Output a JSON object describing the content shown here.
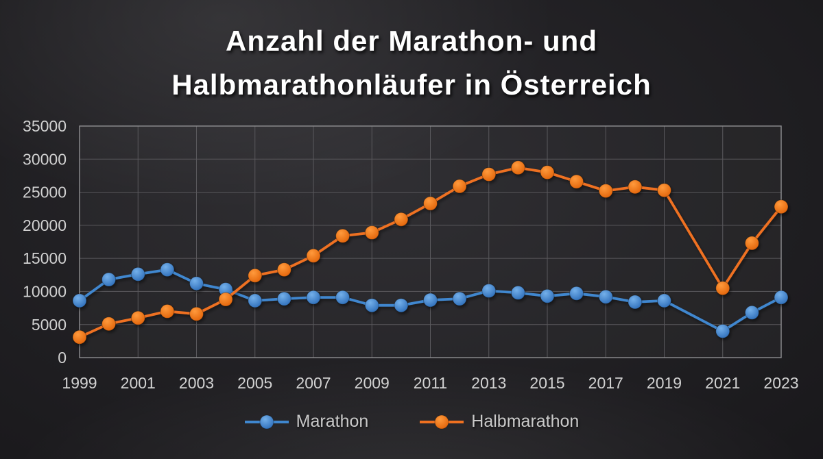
{
  "title": {
    "line1": "Anzahl der Marathon- und",
    "line2": "Halbmarathonläufer in Österreich"
  },
  "chart_data": {
    "type": "line",
    "title": "Anzahl der Marathon- und Halbmarathonläufer in Österreich",
    "xlabel": "",
    "ylabel": "",
    "grid": true,
    "x_axis": {
      "range": [
        1999,
        2023
      ],
      "ticks": [
        1999,
        2001,
        2003,
        2005,
        2007,
        2009,
        2011,
        2013,
        2015,
        2017,
        2019,
        2021,
        2023
      ]
    },
    "y_axis": {
      "min": 0,
      "max": 35000,
      "tick_interval": 5000,
      "ticks": [
        0,
        5000,
        10000,
        15000,
        20000,
        25000,
        30000,
        35000
      ]
    },
    "gap_years": [
      2020
    ],
    "legend": {
      "position": "bottom",
      "entries": [
        "Marathon",
        "Halbmarathon"
      ]
    },
    "series": [
      {
        "name": "Marathon",
        "color": "#3f87cf",
        "marker_gradient": [
          "#74b0ea",
          "#2f6fba"
        ],
        "points": [
          [
            1999,
            8600
          ],
          [
            2000,
            11800
          ],
          [
            2001,
            12600
          ],
          [
            2002,
            13300
          ],
          [
            2003,
            11200
          ],
          [
            2004,
            10300
          ],
          [
            2005,
            8600
          ],
          [
            2006,
            8900
          ],
          [
            2007,
            9100
          ],
          [
            2008,
            9100
          ],
          [
            2009,
            7900
          ],
          [
            2010,
            7900
          ],
          [
            2011,
            8700
          ],
          [
            2012,
            8900
          ],
          [
            2013,
            10100
          ],
          [
            2014,
            9800
          ],
          [
            2015,
            9300
          ],
          [
            2016,
            9700
          ],
          [
            2017,
            9200
          ],
          [
            2018,
            8400
          ],
          [
            2019,
            8600
          ],
          [
            2021,
            4000
          ],
          [
            2022,
            6800
          ],
          [
            2023,
            9100
          ]
        ]
      },
      {
        "name": "Halbmarathon",
        "color": "#ef7120",
        "marker_gradient": [
          "#ff9a3c",
          "#e2640a"
        ],
        "points": [
          [
            1999,
            3100
          ],
          [
            2000,
            5100
          ],
          [
            2001,
            6000
          ],
          [
            2002,
            7000
          ],
          [
            2003,
            6600
          ],
          [
            2004,
            8800
          ],
          [
            2005,
            12400
          ],
          [
            2006,
            13300
          ],
          [
            2007,
            15400
          ],
          [
            2008,
            18400
          ],
          [
            2009,
            18900
          ],
          [
            2010,
            20900
          ],
          [
            2011,
            23300
          ],
          [
            2012,
            25900
          ],
          [
            2013,
            27700
          ],
          [
            2014,
            28700
          ],
          [
            2015,
            28000
          ],
          [
            2016,
            26600
          ],
          [
            2017,
            25200
          ],
          [
            2018,
            25800
          ],
          [
            2019,
            25300
          ],
          [
            2021,
            10500
          ],
          [
            2022,
            17300
          ],
          [
            2023,
            22800
          ]
        ]
      }
    ],
    "style": {
      "grid_color": "#5a595d",
      "border_color": "#8f8f92",
      "axis_label_color": "#d2d2d2",
      "legend_label_color": "#c9c9c9",
      "title_color": "#ffffff"
    }
  }
}
